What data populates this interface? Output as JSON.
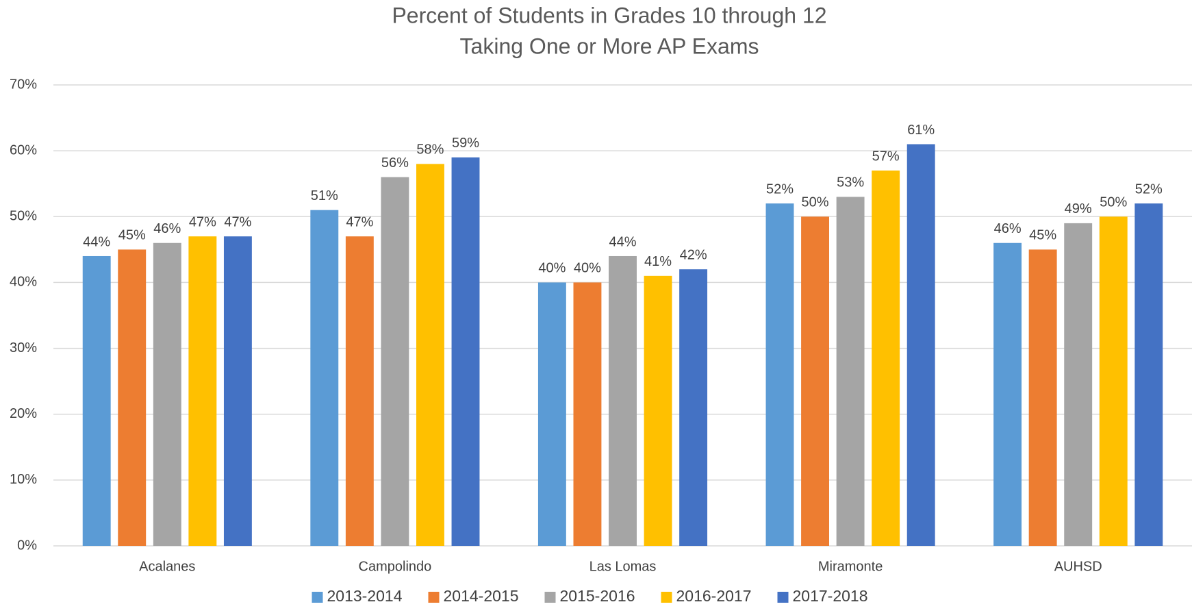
{
  "chart_data": {
    "type": "bar",
    "title": [
      "Percent of Students in Grades 10 through 12",
      "Taking One or More AP Exams"
    ],
    "categories": [
      "Acalanes",
      "Campolindo",
      "Las Lomas",
      "Miramonte",
      "AUHSD"
    ],
    "series": [
      {
        "name": "2013-2014",
        "color": "#5b9bd5",
        "values": [
          44,
          51,
          40,
          52,
          46
        ],
        "value_labels": [
          "44%",
          "51%",
          "40%",
          "52%",
          "46%"
        ]
      },
      {
        "name": "2014-2015",
        "color": "#ed7d31",
        "values": [
          45,
          47,
          40,
          50,
          45
        ],
        "value_labels": [
          "45%",
          "47%",
          "40%",
          "50%",
          "45%"
        ]
      },
      {
        "name": "2015-2016",
        "color": "#a5a5a5",
        "values": [
          46,
          56,
          44,
          53,
          49
        ],
        "value_labels": [
          "46%",
          "56%",
          "44%",
          "53%",
          "49%"
        ]
      },
      {
        "name": "2016-2017",
        "color": "#ffc000",
        "values": [
          47,
          58,
          41,
          57,
          50
        ],
        "value_labels": [
          "47%",
          "58%",
          "41%",
          "57%",
          "50%"
        ]
      },
      {
        "name": "2017-2018",
        "color": "#4472c4",
        "values": [
          47,
          59,
          42,
          61,
          52
        ],
        "value_labels": [
          "47%",
          "59%",
          "42%",
          "61%",
          "52%"
        ]
      }
    ],
    "ylim": [
      0,
      70
    ],
    "yticks": [
      {
        "value": 0,
        "label": "0%"
      },
      {
        "value": 10,
        "label": "10%"
      },
      {
        "value": 20,
        "label": "20%"
      },
      {
        "value": 30,
        "label": "30%"
      },
      {
        "value": 40,
        "label": "40%"
      },
      {
        "value": 50,
        "label": "50%"
      },
      {
        "value": 60,
        "label": "60%"
      },
      {
        "value": 70,
        "label": "70%"
      }
    ],
    "grid": true,
    "legend": "bottom"
  }
}
